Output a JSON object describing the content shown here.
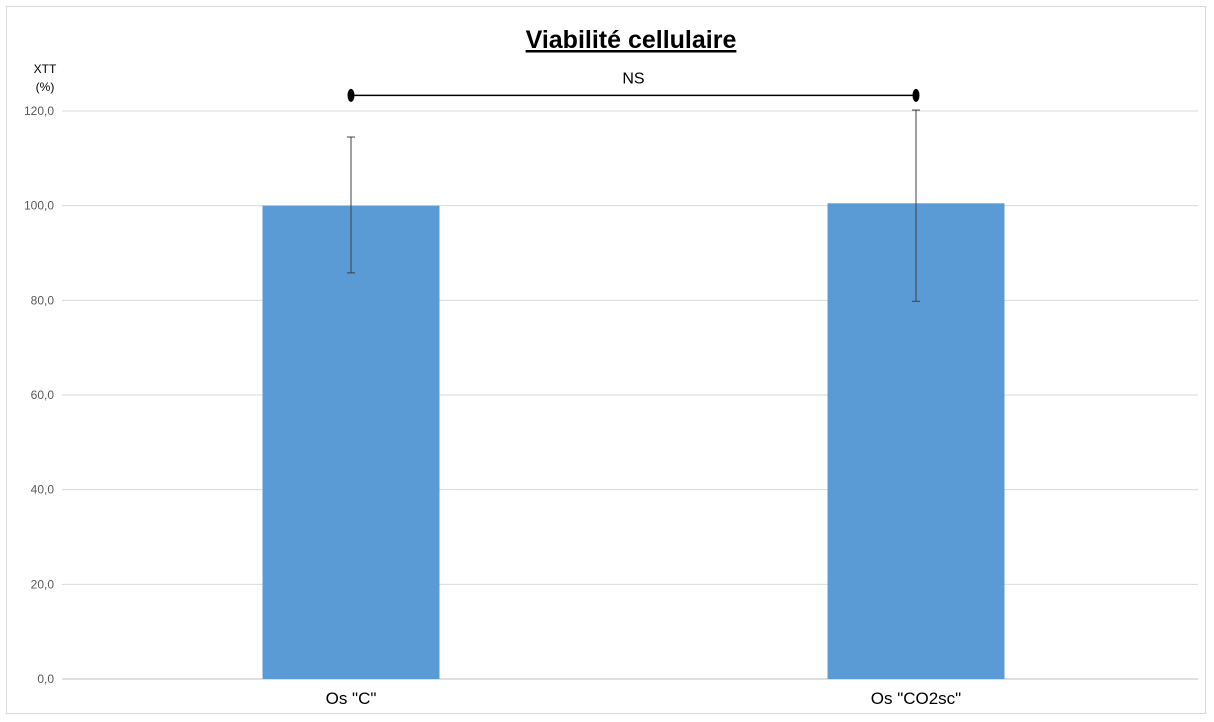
{
  "chart_data": {
    "type": "bar",
    "title": "Viabilité cellulaire",
    "ylabel_line1": "XTT",
    "ylabel_line2": "(%)",
    "xlabel": "",
    "ylim": [
      0,
      120
    ],
    "ytick_values": [
      0,
      20,
      40,
      60,
      80,
      100,
      120
    ],
    "ytick_labels": [
      "0,0",
      "20,0",
      "40,0",
      "60,0",
      "80,0",
      "100,0",
      "120,0"
    ],
    "grid": true,
    "legend": "none",
    "categories": [
      "Os \"C\"",
      "Os \"CO2sc\""
    ],
    "values": [
      100.0,
      100.5
    ],
    "error_low": [
      85.8,
      79.8
    ],
    "error_high": [
      114.5,
      120.2
    ],
    "significance": {
      "label": "NS",
      "from_category": 0,
      "to_category": 1,
      "level": 123.3
    },
    "colors": {
      "bar": "#5b9bd5",
      "grid": "#d9d9d9",
      "error": "#404040"
    }
  }
}
